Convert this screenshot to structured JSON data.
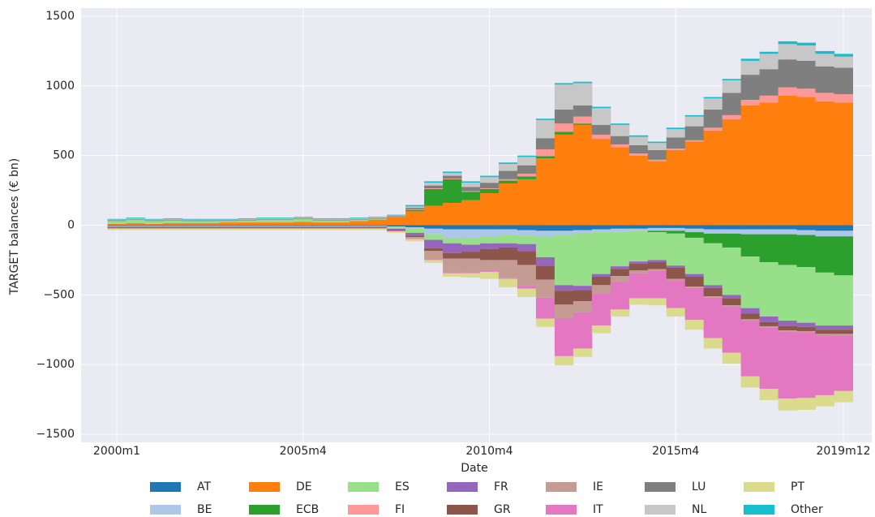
{
  "chart_data": {
    "type": "stacked_bar",
    "x_label": "Date",
    "y_label": "TARGET balances (€ bn)",
    "categories": [
      "2000m1",
      null,
      null,
      null,
      null,
      null,
      null,
      null,
      null,
      null,
      "2005m4",
      null,
      null,
      null,
      null,
      null,
      null,
      null,
      null,
      null,
      "2010m4",
      null,
      null,
      null,
      null,
      null,
      null,
      null,
      null,
      null,
      "2015m4",
      null,
      null,
      null,
      null,
      null,
      null,
      null,
      null,
      "2019m12"
    ],
    "ylim": [
      -1500,
      1500
    ],
    "yticks": [
      {
        "value": -1500,
        "label": "−1500"
      },
      {
        "value": -1000,
        "label": "−1000"
      },
      {
        "value": -500,
        "label": "−500"
      },
      0,
      500,
      1000,
      1500
    ],
    "grid": true,
    "legend": "below",
    "series": [
      {
        "name": "AT",
        "color": "#1f77b4",
        "values": [
          -5,
          -5,
          -5,
          -5,
          -5,
          -5,
          -5,
          -5,
          -5,
          -5,
          -5,
          -5,
          -5,
          -5,
          -5,
          -10,
          -15,
          -25,
          -30,
          -30,
          -30,
          -30,
          -35,
          -40,
          -40,
          -35,
          -30,
          -25,
          -25,
          -20,
          -20,
          -25,
          -30,
          -30,
          -30,
          -30,
          -30,
          -35,
          -40,
          -40
        ]
      },
      {
        "name": "BE",
        "color": "#aec7e8",
        "values": [
          -5,
          -5,
          -5,
          -5,
          -5,
          -5,
          -5,
          -5,
          -5,
          -5,
          -5,
          -5,
          -5,
          -5,
          -5,
          -5,
          -10,
          -40,
          -60,
          -60,
          -50,
          -40,
          -40,
          -40,
          -30,
          -20,
          -20,
          -20,
          -15,
          -20,
          -20,
          -25,
          -30,
          -30,
          -35,
          -35,
          -35,
          -35,
          -40,
          -40
        ]
      },
      {
        "name": "DE",
        "color": "#ff7f0e",
        "values": [
          10,
          15,
          10,
          15,
          15,
          15,
          20,
          20,
          20,
          20,
          25,
          20,
          20,
          30,
          40,
          60,
          100,
          140,
          160,
          180,
          230,
          300,
          330,
          480,
          650,
          720,
          620,
          560,
          500,
          460,
          540,
          600,
          680,
          760,
          860,
          880,
          930,
          920,
          890,
          880
        ]
      },
      {
        "name": "ECB",
        "color": "#2ca02c",
        "values": [
          0,
          0,
          0,
          0,
          0,
          0,
          0,
          0,
          0,
          0,
          0,
          0,
          0,
          0,
          0,
          0,
          10,
          120,
          170,
          60,
          30,
          20,
          20,
          15,
          20,
          10,
          0,
          0,
          0,
          -10,
          -20,
          -40,
          -70,
          -100,
          -160,
          -200,
          -220,
          -230,
          -260,
          -280
        ]
      },
      {
        "name": "ES",
        "color": "#98df8a",
        "values": [
          20,
          25,
          20,
          20,
          15,
          15,
          10,
          15,
          20,
          20,
          20,
          15,
          15,
          10,
          5,
          -10,
          -30,
          -40,
          -40,
          -50,
          -50,
          -60,
          -60,
          -150,
          -360,
          -380,
          -300,
          -250,
          -220,
          -200,
          -230,
          -260,
          -300,
          -340,
          -370,
          -390,
          -400,
          -400,
          -380,
          -360
        ]
      },
      {
        "name": "FI",
        "color": "#ff9896",
        "values": [
          0,
          0,
          0,
          0,
          0,
          0,
          0,
          0,
          0,
          0,
          0,
          0,
          0,
          0,
          0,
          0,
          5,
          5,
          5,
          5,
          5,
          10,
          20,
          50,
          60,
          50,
          30,
          20,
          15,
          10,
          10,
          10,
          20,
          30,
          40,
          50,
          60,
          60,
          60,
          60
        ]
      },
      {
        "name": "FR",
        "color": "#9467bd",
        "values": [
          -5,
          -5,
          -5,
          -5,
          -5,
          -5,
          -5,
          -5,
          -5,
          -5,
          -5,
          -5,
          -5,
          -5,
          -5,
          -10,
          -20,
          -60,
          -70,
          -50,
          -40,
          -30,
          -50,
          -60,
          -40,
          -30,
          -20,
          -20,
          -15,
          -15,
          -15,
          -20,
          -20,
          -25,
          -40,
          -40,
          -40,
          -30,
          -30,
          -30
        ]
      },
      {
        "name": "GR",
        "color": "#8c564b",
        "values": [
          -5,
          -5,
          -5,
          -5,
          -5,
          -5,
          -5,
          -5,
          -5,
          -5,
          -5,
          -5,
          -5,
          -5,
          -5,
          -5,
          -10,
          -20,
          -40,
          -50,
          -80,
          -90,
          -100,
          -100,
          -100,
          -80,
          -60,
          -50,
          -50,
          -50,
          -80,
          -70,
          -60,
          -50,
          -40,
          -30,
          -30,
          -30,
          -30,
          -30
        ]
      },
      {
        "name": "IE",
        "color": "#c49c94",
        "values": [
          0,
          0,
          0,
          0,
          0,
          0,
          0,
          0,
          0,
          0,
          0,
          0,
          0,
          0,
          0,
          0,
          -10,
          -60,
          -100,
          -100,
          -80,
          -130,
          -150,
          -130,
          -100,
          -80,
          -60,
          -40,
          -20,
          -10,
          -10,
          -10,
          -10,
          -10,
          -10,
          -10,
          -10,
          -10,
          -10,
          -10
        ]
      },
      {
        "name": "IT",
        "color": "#e377c2",
        "values": [
          -5,
          -5,
          -5,
          -5,
          -5,
          -5,
          -5,
          -5,
          -5,
          -5,
          -5,
          -5,
          -5,
          -5,
          -5,
          -5,
          -5,
          -5,
          -5,
          -5,
          -5,
          -5,
          -20,
          -150,
          -270,
          -260,
          -230,
          -200,
          -180,
          -200,
          -200,
          -230,
          -290,
          -330,
          -400,
          -440,
          -480,
          -470,
          -430,
          -400
        ]
      },
      {
        "name": "LU",
        "color": "#7f7f7f",
        "values": [
          5,
          5,
          5,
          5,
          5,
          5,
          5,
          5,
          5,
          5,
          5,
          5,
          5,
          5,
          5,
          5,
          10,
          20,
          20,
          30,
          40,
          60,
          60,
          80,
          100,
          80,
          70,
          60,
          60,
          70,
          80,
          100,
          130,
          160,
          180,
          190,
          200,
          200,
          190,
          190
        ]
      },
      {
        "name": "NL",
        "color": "#c7c7c7",
        "values": [
          5,
          5,
          5,
          5,
          5,
          5,
          5,
          5,
          5,
          5,
          5,
          5,
          5,
          5,
          5,
          5,
          10,
          20,
          20,
          30,
          40,
          50,
          60,
          130,
          180,
          160,
          120,
          80,
          60,
          50,
          60,
          70,
          80,
          90,
          100,
          110,
          110,
          110,
          90,
          80
        ]
      },
      {
        "name": "PT",
        "color": "#dbdb8d",
        "values": [
          -10,
          -10,
          -10,
          -10,
          -10,
          -10,
          -10,
          -10,
          -10,
          -10,
          -10,
          -10,
          -10,
          -10,
          -10,
          -10,
          -15,
          -20,
          -25,
          -30,
          -50,
          -60,
          -60,
          -60,
          -65,
          -60,
          -55,
          -50,
          -45,
          -50,
          -60,
          -70,
          -75,
          -80,
          -80,
          -80,
          -85,
          -85,
          -80,
          -80
        ]
      },
      {
        "name": "Other",
        "color": "#17becf",
        "values": [
          5,
          5,
          5,
          5,
          5,
          5,
          5,
          5,
          5,
          5,
          5,
          5,
          5,
          5,
          5,
          5,
          10,
          10,
          10,
          10,
          10,
          10,
          10,
          10,
          10,
          10,
          10,
          10,
          10,
          10,
          10,
          10,
          10,
          10,
          15,
          15,
          20,
          20,
          20,
          20
        ]
      }
    ]
  }
}
